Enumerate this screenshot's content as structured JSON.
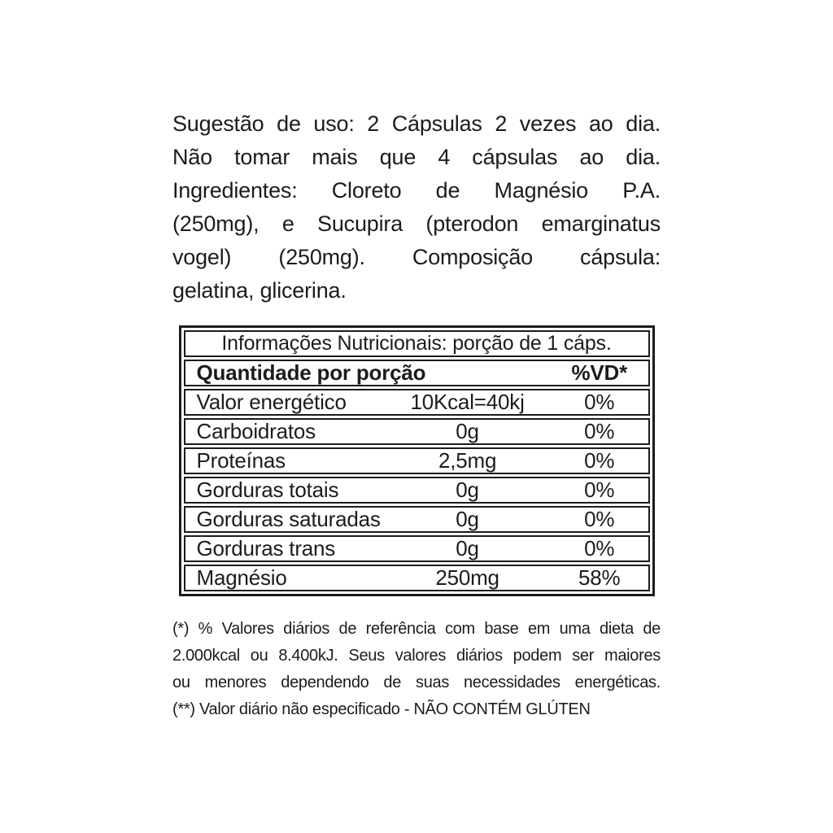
{
  "usage": {
    "lines": [
      "Sugestão de uso: 2 Cápsulas 2 vezes ao dia.",
      "Não tomar mais que 4 cápsulas ao dia."
    ]
  },
  "ingredients": {
    "lines": [
      "Ingredientes: Cloreto de Magnésio P.A.",
      "(250mg), e Sucupira (pterodon emarginatus",
      "vogel) (250mg). Composição cápsula:",
      "gelatina, glicerina."
    ]
  },
  "nutrition_table": {
    "title": "Informações Nutricionais: porção de 1 cáps.",
    "header": {
      "quantity_label": "Quantidade por porção",
      "dv_label": "%VD*"
    },
    "rows": [
      {
        "label": "Valor energético",
        "amount": "10Kcal=40kj",
        "dv": "0%"
      },
      {
        "label": "Carboidratos",
        "amount": "0g",
        "dv": "0%"
      },
      {
        "label": "Proteínas",
        "amount": "2,5mg",
        "dv": "0%"
      },
      {
        "label": "Gorduras totais",
        "amount": "0g",
        "dv": "0%"
      },
      {
        "label": "Gorduras saturadas",
        "amount": "0g",
        "dv": "0%"
      },
      {
        "label": "Gorduras trans",
        "amount": "0g",
        "dv": "0%"
      },
      {
        "label": "Magnésio",
        "amount": "250mg",
        "dv": "58%"
      }
    ]
  },
  "footnotes": {
    "lines": [
      "(*) % Valores diários de referência com base em uma dieta de",
      "2.000kcal ou 8.400kJ. Seus valores diários podem ser maiores",
      "ou menores dependendo de suas necessidades energéticas.",
      "(**) Valor diário não especificado - NÃO CONTÉM GLÚTEN"
    ]
  },
  "colors": {
    "text": "#1c1c1c",
    "border": "#1c1c1c",
    "background": "#ffffff"
  }
}
